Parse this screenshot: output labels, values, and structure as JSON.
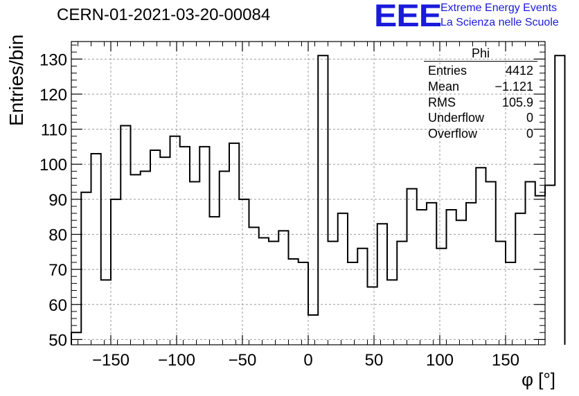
{
  "header": {
    "run_title": "CERN-01-2021-03-20-00084",
    "logo_text": "EEE",
    "logo_line1": "Extreme Energy Events",
    "logo_line2": "La Scienza nelle Scuole",
    "logo_color": "#1a1adc"
  },
  "stats": {
    "title": "Phi",
    "rows": [
      {
        "label": "Entries",
        "value": "4412"
      },
      {
        "label": "Mean",
        "value": "−1.121"
      },
      {
        "label": "RMS",
        "value": "105.9"
      },
      {
        "label": "Underflow",
        "value": "0"
      },
      {
        "label": "Overflow",
        "value": "0"
      }
    ]
  },
  "chart_data": {
    "type": "histogram",
    "xlabel": "φ [°]",
    "ylabel": "Entries/bin",
    "xlim": [
      -180,
      180
    ],
    "ylim": [
      48.5,
      135
    ],
    "x_ticks": [
      -150,
      -100,
      -50,
      0,
      50,
      100,
      150
    ],
    "x_tick_labels": [
      "−150",
      "−100",
      "−50",
      "0",
      "50",
      "100",
      "150"
    ],
    "y_ticks": [
      50,
      60,
      70,
      80,
      90,
      100,
      110,
      120,
      130
    ],
    "y_tick_labels": [
      "50",
      "60",
      "70",
      "80",
      "90",
      "100",
      "110",
      "120",
      "130"
    ],
    "grid": true,
    "bin_width": 7.5,
    "bin_edges_start": -180,
    "values": [
      52,
      92,
      103,
      67,
      90,
      111,
      97,
      98,
      104,
      102,
      108,
      105,
      95,
      105,
      85,
      98,
      106,
      90,
      82,
      79,
      78,
      81,
      73,
      72,
      57,
      131,
      78,
      86,
      72,
      76,
      65,
      83,
      67,
      78,
      93,
      87,
      89,
      76,
      87,
      84,
      89,
      99,
      95,
      78,
      72,
      86,
      95,
      91,
      94,
      131
    ]
  }
}
